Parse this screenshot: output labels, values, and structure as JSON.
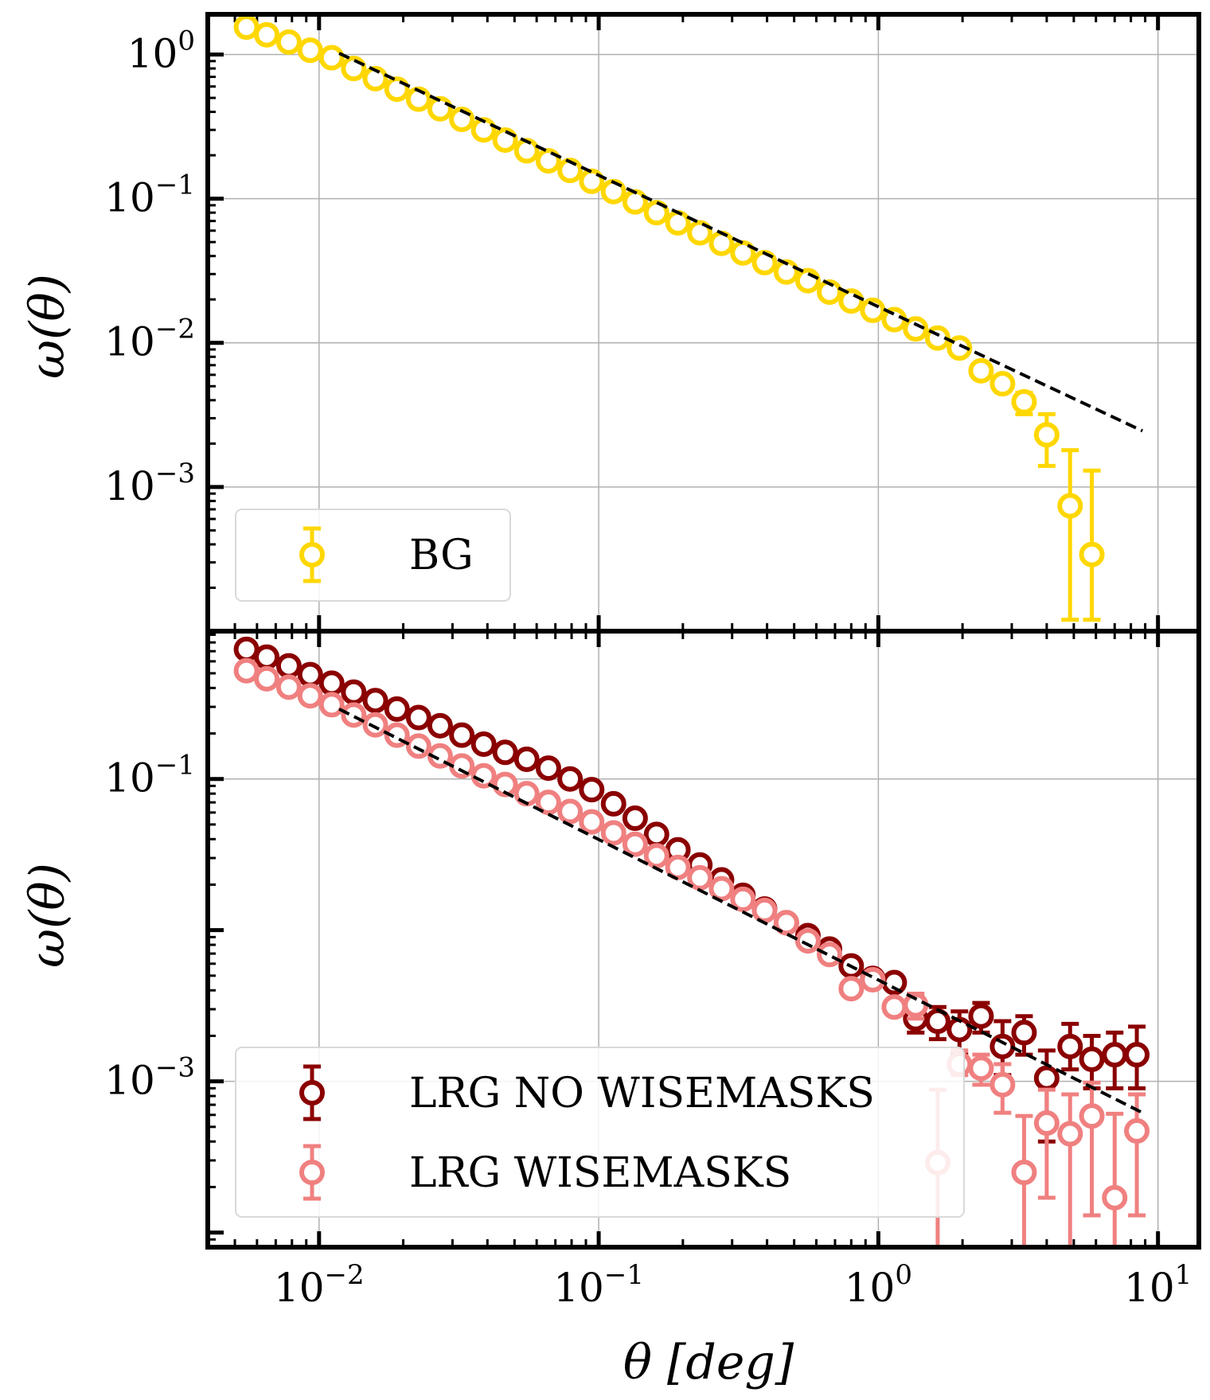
{
  "chart_data": [
    {
      "type": "scatter",
      "panel": "top",
      "xscale": "log",
      "yscale": "log",
      "xlim": [
        0.004,
        14
      ],
      "ylim": [
        0.0001,
        1.9
      ],
      "xlabel": "θ [deg]",
      "ylabel": "ω(θ)",
      "grid": true,
      "legend_position": "lower-left",
      "x_ticks": [
        {
          "value": 0.01,
          "base": "10",
          "exp": "−2"
        },
        {
          "value": 0.1,
          "base": "10",
          "exp": "−1"
        },
        {
          "value": 1,
          "base": "10",
          "exp": "0"
        },
        {
          "value": 10,
          "base": "10",
          "exp": "1"
        }
      ],
      "y_ticks": [
        {
          "value": 1,
          "base": "10",
          "exp": "0"
        },
        {
          "value": 0.1,
          "base": "10",
          "exp": "−1"
        },
        {
          "value": 0.01,
          "base": "10",
          "exp": "−2"
        },
        {
          "value": 0.001,
          "base": "10",
          "exp": "−3"
        }
      ],
      "series": [
        {
          "name": "BG",
          "color": "#FFD700",
          "points": [
            {
              "x": 0.0055,
              "y": 1.55
            },
            {
              "x": 0.0065,
              "y": 1.37
            },
            {
              "x": 0.0078,
              "y": 1.22
            },
            {
              "x": 0.0093,
              "y": 1.07
            },
            {
              "x": 0.0111,
              "y": 0.95
            },
            {
              "x": 0.0133,
              "y": 0.8
            },
            {
              "x": 0.0159,
              "y": 0.68
            },
            {
              "x": 0.019,
              "y": 0.575
            },
            {
              "x": 0.0227,
              "y": 0.49
            },
            {
              "x": 0.0271,
              "y": 0.42
            },
            {
              "x": 0.0324,
              "y": 0.355
            },
            {
              "x": 0.0388,
              "y": 0.3
            },
            {
              "x": 0.0463,
              "y": 0.255
            },
            {
              "x": 0.0553,
              "y": 0.215
            },
            {
              "x": 0.0661,
              "y": 0.183
            },
            {
              "x": 0.079,
              "y": 0.157
            },
            {
              "x": 0.0944,
              "y": 0.132
            },
            {
              "x": 0.113,
              "y": 0.112
            },
            {
              "x": 0.135,
              "y": 0.095
            },
            {
              "x": 0.161,
              "y": 0.08
            },
            {
              "x": 0.192,
              "y": 0.068
            },
            {
              "x": 0.23,
              "y": 0.058
            },
            {
              "x": 0.275,
              "y": 0.049
            },
            {
              "x": 0.328,
              "y": 0.042
            },
            {
              "x": 0.392,
              "y": 0.036
            },
            {
              "x": 0.469,
              "y": 0.031
            },
            {
              "x": 0.56,
              "y": 0.027
            },
            {
              "x": 0.669,
              "y": 0.0225
            },
            {
              "x": 0.8,
              "y": 0.0195
            },
            {
              "x": 0.955,
              "y": 0.0168
            },
            {
              "x": 1.14,
              "y": 0.0145
            },
            {
              "x": 1.36,
              "y": 0.0125
            },
            {
              "x": 1.63,
              "y": 0.0108
            },
            {
              "x": 1.95,
              "y": 0.0092
            },
            {
              "x": 2.33,
              "y": 0.0064,
              "err": [
                0.0057,
                0.0071
              ]
            },
            {
              "x": 2.78,
              "y": 0.0052,
              "err": [
                0.0046,
                0.0058
              ]
            },
            {
              "x": 3.32,
              "y": 0.0039,
              "err": [
                0.0032,
                0.0045
              ]
            },
            {
              "x": 4.0,
              "y": 0.0023,
              "err": [
                0.0014,
                0.0032
              ]
            },
            {
              "x": 4.85,
              "y": 0.00074,
              "err": [
                0.00012,
                0.0018
              ]
            },
            {
              "x": 5.8,
              "y": 0.00034,
              "err": [
                0.00012,
                0.0013
              ]
            }
          ]
        },
        {
          "name": "fit",
          "style": "dashed",
          "color": "#000000",
          "line": [
            {
              "x": 0.0118,
              "y": 1.02
            },
            {
              "x": 8.8,
              "y": 0.00245
            }
          ]
        }
      ],
      "legend": [
        {
          "label": "BG",
          "color": "#FFD700"
        }
      ]
    },
    {
      "type": "scatter",
      "panel": "bottom",
      "xscale": "log",
      "yscale": "log",
      "xlim": [
        0.004,
        14
      ],
      "ylim": [
        8e-05,
        0.95
      ],
      "xlabel": "θ [deg]",
      "ylabel": "ω(θ)",
      "grid": true,
      "legend_position": "lower-left",
      "y_ticks": [
        {
          "value": 0.1,
          "base": "10",
          "exp": "−1"
        },
        {
          "value": 0.001,
          "base": "10",
          "exp": "−3"
        }
      ],
      "series": [
        {
          "name": "LRG NO WISEMASKS",
          "color": "#8B0000",
          "points": [
            {
              "x": 0.0055,
              "y": 0.72
            },
            {
              "x": 0.0065,
              "y": 0.64
            },
            {
              "x": 0.0078,
              "y": 0.56
            },
            {
              "x": 0.0093,
              "y": 0.49
            },
            {
              "x": 0.0111,
              "y": 0.43
            },
            {
              "x": 0.0133,
              "y": 0.375
            },
            {
              "x": 0.0159,
              "y": 0.33
            },
            {
              "x": 0.019,
              "y": 0.29
            },
            {
              "x": 0.0227,
              "y": 0.255
            },
            {
              "x": 0.0271,
              "y": 0.225
            },
            {
              "x": 0.0324,
              "y": 0.195
            },
            {
              "x": 0.0388,
              "y": 0.17
            },
            {
              "x": 0.0463,
              "y": 0.15
            },
            {
              "x": 0.0553,
              "y": 0.135
            },
            {
              "x": 0.0661,
              "y": 0.118
            },
            {
              "x": 0.079,
              "y": 0.1
            },
            {
              "x": 0.0944,
              "y": 0.085
            },
            {
              "x": 0.113,
              "y": 0.0685
            },
            {
              "x": 0.135,
              "y": 0.055
            },
            {
              "x": 0.161,
              "y": 0.043
            },
            {
              "x": 0.192,
              "y": 0.034
            },
            {
              "x": 0.23,
              "y": 0.027
            },
            {
              "x": 0.275,
              "y": 0.0215
            },
            {
              "x": 0.328,
              "y": 0.017
            },
            {
              "x": 0.392,
              "y": 0.0138
            },
            {
              "x": 0.469,
              "y": 0.0112
            },
            {
              "x": 0.56,
              "y": 0.0092
            },
            {
              "x": 0.669,
              "y": 0.0075
            },
            {
              "x": 0.8,
              "y": 0.0058
            },
            {
              "x": 0.955,
              "y": 0.0048
            },
            {
              "x": 1.14,
              "y": 0.0045
            },
            {
              "x": 1.36,
              "y": 0.0026,
              "err": [
                0.0021,
                0.0032
              ]
            },
            {
              "x": 1.63,
              "y": 0.0025,
              "err": [
                0.0019,
                0.0031
              ]
            },
            {
              "x": 1.95,
              "y": 0.0022,
              "err": [
                0.0015,
                0.0029
              ]
            },
            {
              "x": 2.33,
              "y": 0.0027,
              "err": [
                0.0021,
                0.0033
              ]
            },
            {
              "x": 2.78,
              "y": 0.0017,
              "err": [
                0.0011,
                0.0025
              ]
            },
            {
              "x": 3.32,
              "y": 0.0021,
              "err": [
                0.0015,
                0.0027
              ]
            },
            {
              "x": 4.0,
              "y": 0.00105,
              "err": [
                0.0004,
                0.0016
              ]
            },
            {
              "x": 4.85,
              "y": 0.0017,
              "err": [
                0.0012,
                0.0024
              ]
            },
            {
              "x": 5.8,
              "y": 0.0014,
              "err": [
                0.0009,
                0.002
              ]
            },
            {
              "x": 7.0,
              "y": 0.0015,
              "err": [
                0.0009,
                0.0021
              ]
            },
            {
              "x": 8.4,
              "y": 0.0015,
              "err": [
                0.0009,
                0.0023
              ]
            }
          ]
        },
        {
          "name": "LRG WISEMASKS",
          "color": "#F08080",
          "points": [
            {
              "x": 0.0055,
              "y": 0.52
            },
            {
              "x": 0.0065,
              "y": 0.46
            },
            {
              "x": 0.0078,
              "y": 0.405
            },
            {
              "x": 0.0093,
              "y": 0.355
            },
            {
              "x": 0.0111,
              "y": 0.31
            },
            {
              "x": 0.0133,
              "y": 0.265
            },
            {
              "x": 0.0159,
              "y": 0.228
            },
            {
              "x": 0.019,
              "y": 0.195
            },
            {
              "x": 0.0227,
              "y": 0.165
            },
            {
              "x": 0.0271,
              "y": 0.142
            },
            {
              "x": 0.0324,
              "y": 0.122
            },
            {
              "x": 0.0388,
              "y": 0.105
            },
            {
              "x": 0.0463,
              "y": 0.092
            },
            {
              "x": 0.0553,
              "y": 0.08
            },
            {
              "x": 0.0661,
              "y": 0.07
            },
            {
              "x": 0.079,
              "y": 0.061
            },
            {
              "x": 0.0944,
              "y": 0.052
            },
            {
              "x": 0.113,
              "y": 0.044
            },
            {
              "x": 0.135,
              "y": 0.037
            },
            {
              "x": 0.161,
              "y": 0.031
            },
            {
              "x": 0.192,
              "y": 0.026
            },
            {
              "x": 0.23,
              "y": 0.0222
            },
            {
              "x": 0.275,
              "y": 0.0188
            },
            {
              "x": 0.328,
              "y": 0.016
            },
            {
              "x": 0.392,
              "y": 0.0135
            },
            {
              "x": 0.469,
              "y": 0.0112
            },
            {
              "x": 0.56,
              "y": 0.0085
            },
            {
              "x": 0.669,
              "y": 0.0069
            },
            {
              "x": 0.8,
              "y": 0.0041
            },
            {
              "x": 0.955,
              "y": 0.0047
            },
            {
              "x": 1.14,
              "y": 0.0031
            },
            {
              "x": 1.36,
              "y": 0.0032,
              "err": [
                0.0026,
                0.0038
              ]
            },
            {
              "x": 1.63,
              "y": 0.00029,
              "err": [
                8e-05,
                0.00088
              ]
            },
            {
              "x": 1.95,
              "y": 0.0013,
              "err": [
                0.0011,
                0.0016
              ]
            },
            {
              "x": 2.33,
              "y": 0.00122,
              "err": [
                0.00095,
                0.0015
              ]
            },
            {
              "x": 2.78,
              "y": 0.00095,
              "err": [
                0.00062,
                0.0013
              ]
            },
            {
              "x": 3.32,
              "y": 0.00025,
              "err": [
                8e-05,
                0.00059
              ]
            },
            {
              "x": 4.0,
              "y": 0.00053,
              "err": [
                0.00017,
                0.00088
              ]
            },
            {
              "x": 4.85,
              "y": 0.00045,
              "err": [
                8e-05,
                0.00082
              ]
            },
            {
              "x": 5.8,
              "y": 0.00059,
              "err": [
                0.00013,
                0.00098
              ]
            },
            {
              "x": 7.0,
              "y": 0.00017,
              "err": [
                8e-05,
                0.00061
              ]
            },
            {
              "x": 8.4,
              "y": 0.00047,
              "err": [
                0.00013,
                0.00082
              ]
            }
          ]
        },
        {
          "name": "fit",
          "style": "dashed",
          "color": "#000000",
          "line": [
            {
              "x": 0.0118,
              "y": 0.29
            },
            {
              "x": 8.8,
              "y": 0.00062
            }
          ]
        }
      ],
      "legend": [
        {
          "label": "LRG NO WISEMASKS",
          "color": "#8B0000"
        },
        {
          "label": "LRG WISEMASKS",
          "color": "#F08080"
        }
      ]
    }
  ]
}
